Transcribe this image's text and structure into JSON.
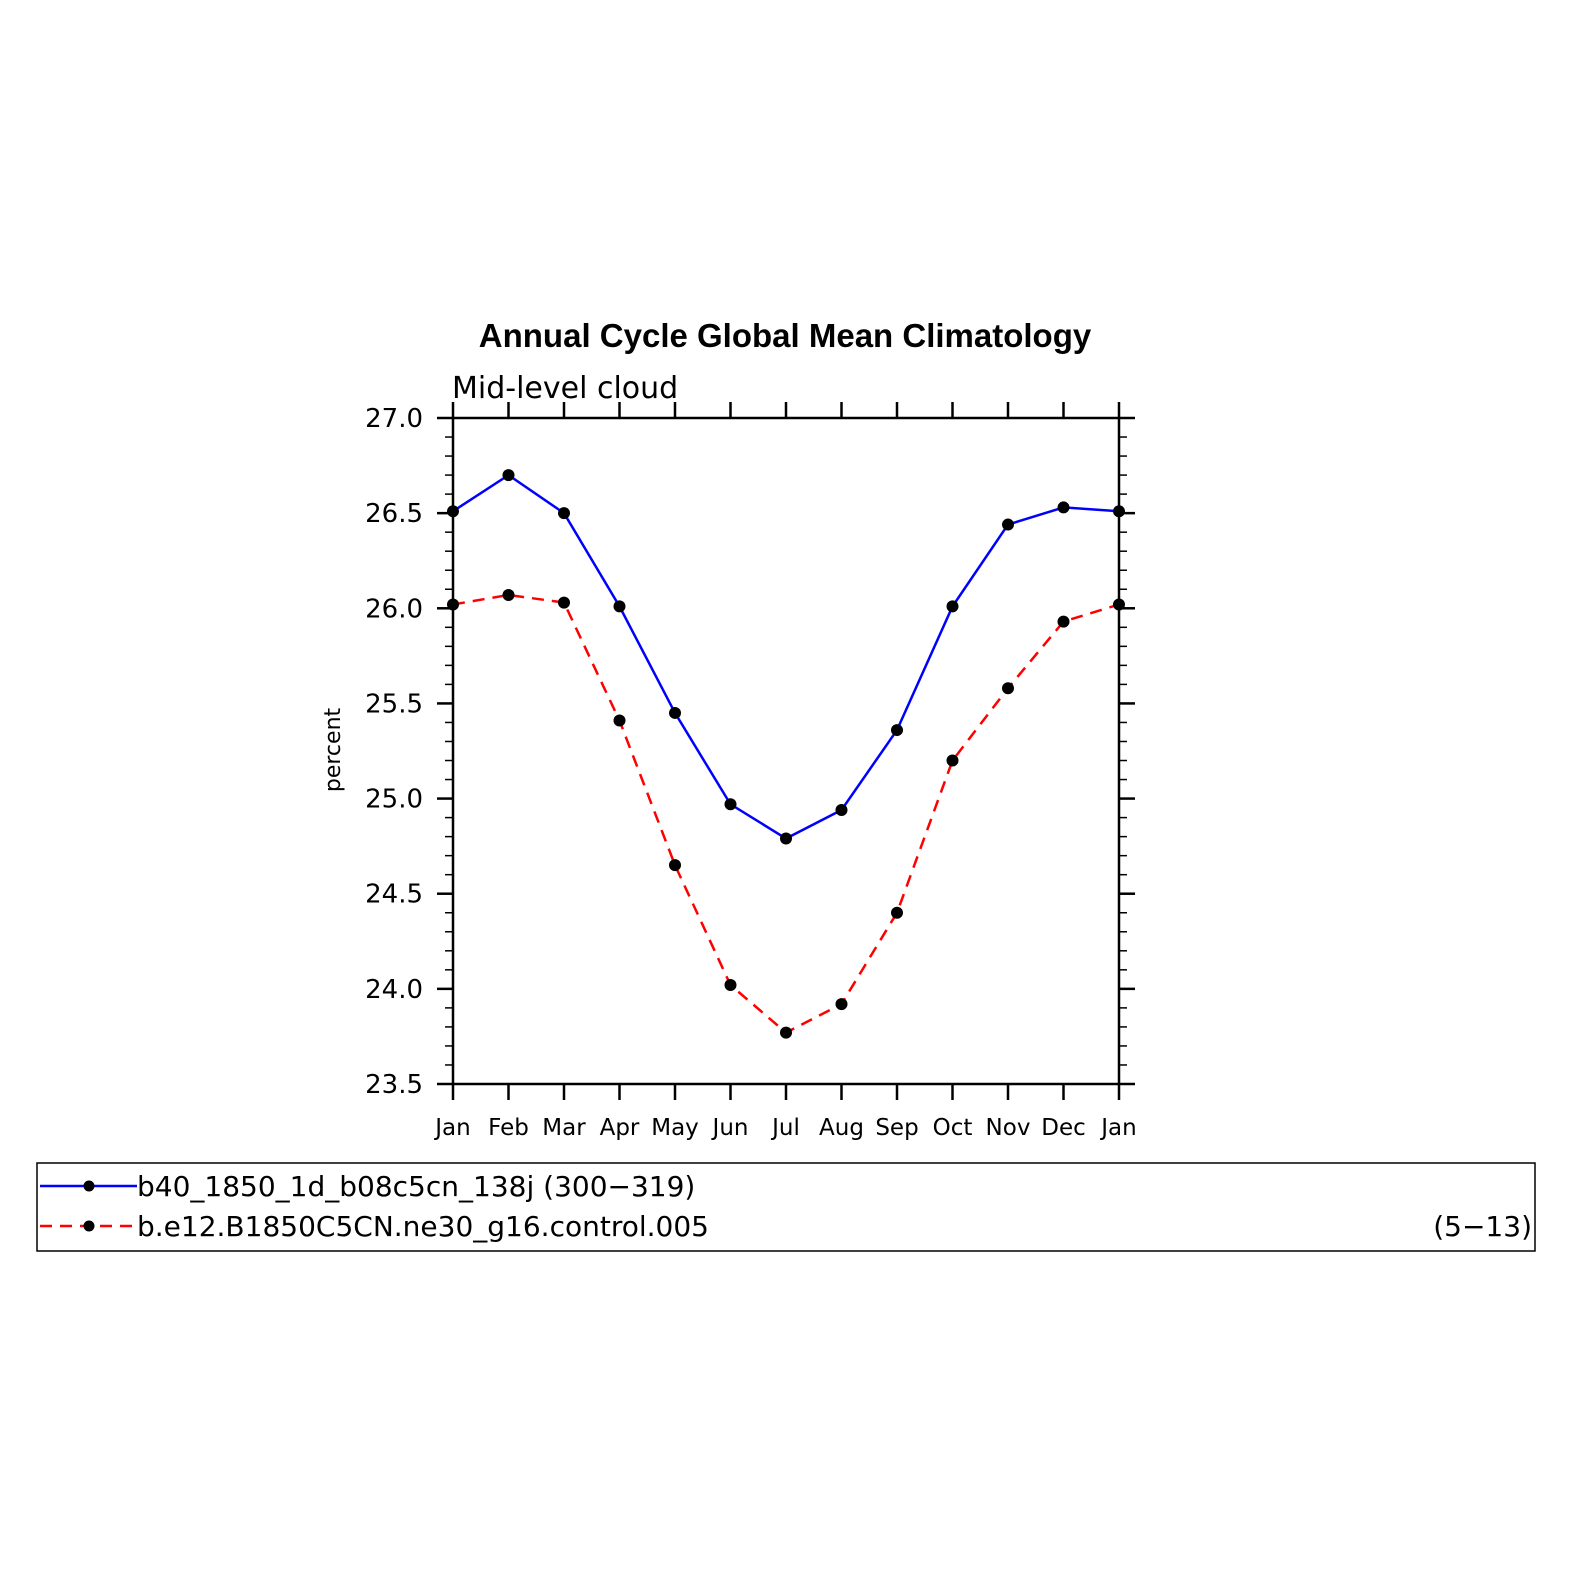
{
  "chart_data": {
    "type": "line",
    "title": "Annual Cycle Global Mean Climatology",
    "subtitle": "Mid-level cloud",
    "ylabel": "percent",
    "xlabel": "",
    "categories": [
      "Jan",
      "Feb",
      "Mar",
      "Apr",
      "May",
      "Jun",
      "Jul",
      "Aug",
      "Sep",
      "Oct",
      "Nov",
      "Dec",
      "Jan"
    ],
    "ylim": [
      23.5,
      27.0
    ],
    "yticks": [
      "23.5",
      "24.0",
      "24.5",
      "25.0",
      "25.5",
      "26.0",
      "26.5",
      "27.0"
    ],
    "series": [
      {
        "name": "b40_1850_1d_b08c5cn_138j",
        "years": "(300−319)",
        "color": "#0000ff",
        "dash": "solid",
        "values": [
          26.51,
          26.7,
          26.5,
          26.01,
          25.45,
          24.97,
          24.79,
          24.94,
          25.36,
          26.01,
          26.44,
          26.53,
          26.51
        ]
      },
      {
        "name": "b.e12.B1850C5CN.ne30_g16.control.005",
        "years": "(5−13)",
        "color": "#ff0000",
        "dash": "dashed",
        "values": [
          26.02,
          26.07,
          26.03,
          25.41,
          24.65,
          24.02,
          23.77,
          23.92,
          24.4,
          25.2,
          25.58,
          25.93,
          26.02
        ]
      }
    ],
    "marker_color": "#000000"
  }
}
